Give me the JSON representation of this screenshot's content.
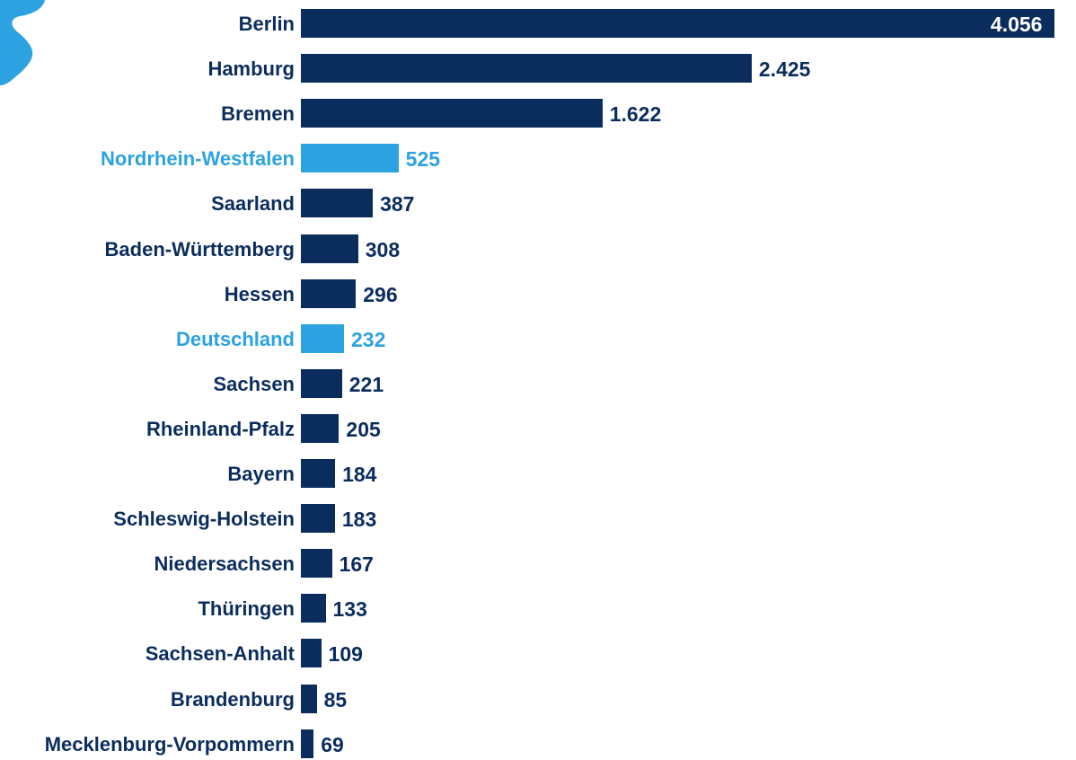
{
  "colors": {
    "default": "#0b2d5e",
    "highlight": "#2ca3e0",
    "decor": "#2ca3e0"
  },
  "decor": {
    "icon": "map-shape-icon"
  },
  "chart_data": {
    "type": "bar",
    "orientation": "horizontal",
    "title": "",
    "xlabel": "",
    "ylabel": "",
    "xlim": [
      0,
      4160
    ],
    "grid": false,
    "legend": "none",
    "categories": [
      "Berlin",
      "Hamburg",
      "Bremen",
      "Nordrhein-Westfalen",
      "Saarland",
      "Baden-Württemberg",
      "Hessen",
      "Deutschland",
      "Sachsen",
      "Rheinland-Pfalz",
      "Bayern",
      "Schleswig-Holstein",
      "Niedersachsen",
      "Thüringen",
      "Sachsen-Anhalt",
      "Brandenburg",
      "Mecklenburg-Vorpommern"
    ],
    "values": [
      4056,
      2425,
      1622,
      525,
      387,
      308,
      296,
      232,
      221,
      205,
      184,
      183,
      167,
      133,
      109,
      85,
      69
    ],
    "value_labels": [
      "4.056",
      "2.425",
      "1.622",
      "525",
      "387",
      "308",
      "296",
      "232",
      "221",
      "205",
      "184",
      "183",
      "167",
      "133",
      "109",
      "85",
      "69"
    ],
    "highlighted": [
      "Nordrhein-Westfalen",
      "Deutschland"
    ]
  }
}
